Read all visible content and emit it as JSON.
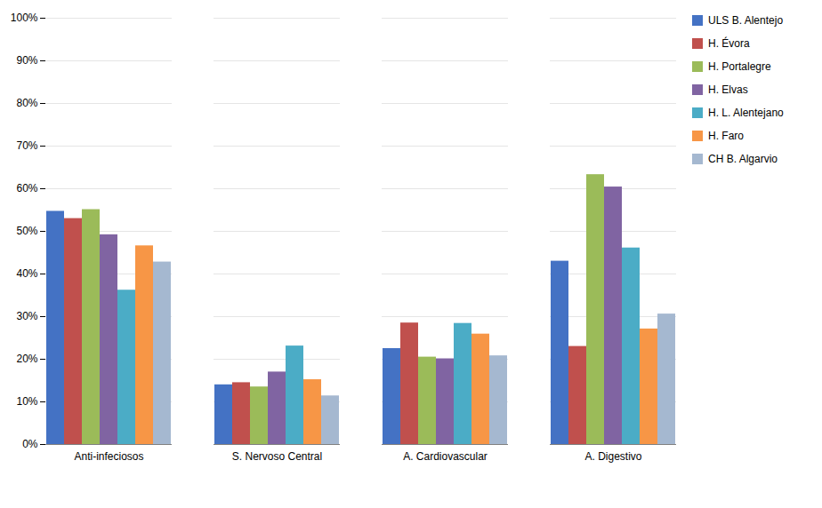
{
  "chart_data": {
    "type": "bar",
    "categories": [
      "Anti-infeciosos",
      "S. Nervoso Central",
      "A. Cardiovascular",
      "A. Digestivo"
    ],
    "series": [
      {
        "name": "ULS B. Alentejo",
        "color": "#4472C4",
        "values": [
          0.547,
          0.14,
          0.225,
          0.43
        ]
      },
      {
        "name": "H. Évora",
        "color": "#C0504D",
        "values": [
          0.53,
          0.145,
          0.285,
          0.23
        ]
      },
      {
        "name": "H. Portalegre",
        "color": "#9BBB59",
        "values": [
          0.551,
          0.135,
          0.205,
          0.633
        ]
      },
      {
        "name": "H. Elvas",
        "color": "#8064A2",
        "values": [
          0.492,
          0.17,
          0.201,
          0.604
        ]
      },
      {
        "name": "H. L. Alentejano",
        "color": "#4BACC6",
        "values": [
          0.362,
          0.231,
          0.284,
          0.461
        ]
      },
      {
        "name": "H. Faro",
        "color": "#F79646",
        "values": [
          0.466,
          0.152,
          0.259,
          0.271
        ]
      },
      {
        "name": "CH B. Algarvio",
        "color": "#A5B8D0",
        "values": [
          0.428,
          0.114,
          0.208,
          0.306
        ]
      }
    ],
    "ylim": [
      0,
      1.0
    ],
    "yticks": [
      {
        "value": 0.0,
        "label": "0%"
      },
      {
        "value": 0.1,
        "label": "10%"
      },
      {
        "value": 0.2,
        "label": "20%"
      },
      {
        "value": 0.3,
        "label": "30%"
      },
      {
        "value": 0.4,
        "label": "40%"
      },
      {
        "value": 0.5,
        "label": "50%"
      },
      {
        "value": 0.6,
        "label": "60%"
      },
      {
        "value": 0.7,
        "label": "70%"
      },
      {
        "value": 0.8,
        "label": "80%"
      },
      {
        "value": 0.9,
        "label": "90%"
      },
      {
        "value": 1.0,
        "label": "100%"
      }
    ],
    "grid": true,
    "legend": "right"
  }
}
